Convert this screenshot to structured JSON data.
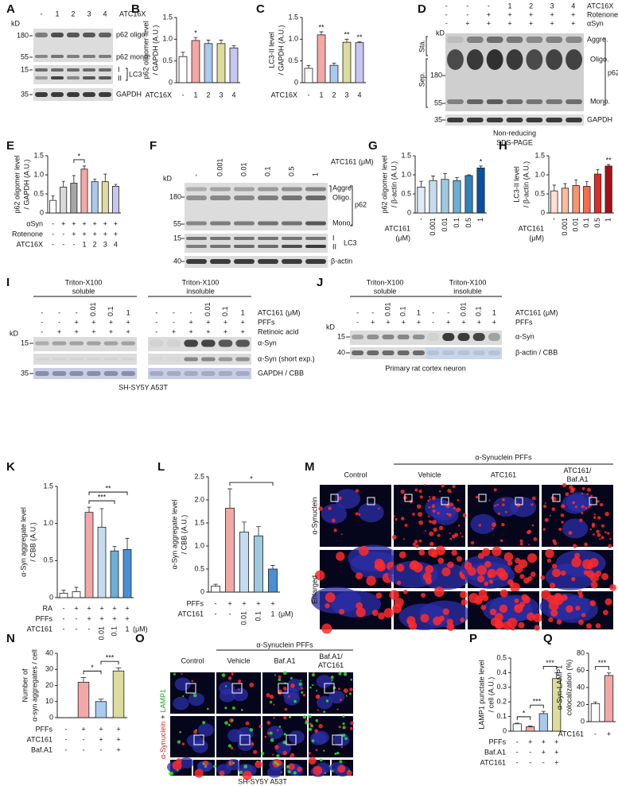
{
  "figure": {
    "A": {
      "letter": "A",
      "kd": "kD",
      "lanes": [
        "-",
        "1",
        "2",
        "3",
        "4"
      ],
      "treatment": "ATC16X",
      "markers": [
        180,
        55,
        15,
        35
      ],
      "labels": [
        "p62 oligo.",
        "p62 mono.",
        "I",
        "II",
        "LC3",
        "GAPDH"
      ]
    },
    "D": {
      "letter": "D",
      "rows": [
        {
          "label": "ATC16X",
          "lanes": [
            "-",
            "-",
            "-",
            "1",
            "2",
            "3",
            "4"
          ]
        },
        {
          "label": "Rotenone",
          "lanes": [
            "-",
            "-",
            "+",
            "+",
            "+",
            "+",
            "+"
          ]
        },
        {
          "label": "αSyn",
          "lanes": [
            "-",
            "+",
            "+",
            "+",
            "+",
            "+",
            "+"
          ]
        }
      ],
      "kd": "kD",
      "stack": [
        "Sta.",
        "Sep."
      ],
      "markers": [
        180,
        55,
        35
      ],
      "labels": [
        "Aggre.",
        "Oligo.",
        "Mono.",
        "p62",
        "GAPDH"
      ],
      "caption": [
        "Non-reducing",
        "SDS-PAGE"
      ]
    },
    "F": {
      "letter": "F",
      "lanes": [
        "-",
        "0.001",
        "0.01",
        "0.1",
        "0.5",
        "1"
      ],
      "treatment": "ATC161 (μM)",
      "kd": "kD",
      "markers": [
        180,
        55,
        15,
        40
      ],
      "labels": [
        "Aggre.",
        "Oligo.",
        "Mono.",
        "p62",
        "I",
        "II",
        "LC3",
        "β-actin"
      ]
    },
    "I": {
      "letter": "I",
      "fractions": [
        [
          "Triton-X100",
          "soluble"
        ],
        [
          "Triton-X100",
          "insoluble"
        ]
      ],
      "rows": [
        {
          "label": "ATC161 (μM)",
          "lanes": [
            "-",
            "-",
            "-",
            "0.01",
            "0.1",
            "1"
          ]
        },
        {
          "label": "PFFs",
          "lanes": [
            "-",
            "-",
            "+",
            "+",
            "+",
            "+"
          ]
        },
        {
          "label": "Retinoic acid",
          "lanes": [
            "-",
            "+",
            "+",
            "+",
            "+",
            "+"
          ]
        }
      ],
      "kd": "kD",
      "markers": [
        15,
        35
      ],
      "labels": [
        "α-Syn",
        "α-Syn (short exp.)",
        "GAPDH / CBB"
      ],
      "caption": "SH-SY5Y A53T"
    },
    "J": {
      "letter": "J",
      "fractions": [
        [
          "Triton-X100",
          "soluble"
        ],
        [
          "Triton-X100",
          "insoluble"
        ]
      ],
      "rows": [
        {
          "label": "ATC161 (μM)",
          "lanes": [
            "-",
            "-",
            "0.01",
            "0.1",
            "1"
          ]
        },
        {
          "label": "PFFs",
          "lanes": [
            "-",
            "+",
            "+",
            "+",
            "+"
          ]
        }
      ],
      "kd": "kD",
      "markers": [
        15,
        40
      ],
      "labels": [
        "α-Syn",
        "β-actin / CBB"
      ],
      "caption": "Primary rat cortex neuron"
    },
    "M": {
      "letter": "M",
      "group": "α-Synuclein PFFs",
      "columns": [
        [
          "Control"
        ],
        [
          "Vehicle"
        ],
        [
          "ATC161"
        ],
        [
          "ATC161/",
          "Baf.A1"
        ]
      ],
      "stain": "α-Synuclein",
      "row_label": "Enlarged"
    },
    "O": {
      "letter": "O",
      "group": "α-Synuclein PFFs",
      "columns": [
        [
          "Control"
        ],
        [
          "Vehicle"
        ],
        [
          "Baf.A1"
        ],
        [
          "Baf.A1/",
          "ATC161"
        ]
      ],
      "stain": [
        "α-Synuclein",
        "+",
        "LAMP1"
      ],
      "caption": "SH-SY5Y A53T"
    }
  },
  "chart_data": [
    {
      "letter": "B",
      "type": "bar",
      "ylabel": [
        "p62 oligomer level",
        "/ GAPDH (A.U.)"
      ],
      "xlabel": "ATC16X",
      "categories": [
        "-",
        "1",
        "2",
        "3",
        "4"
      ],
      "values": [
        0.6,
        0.97,
        0.9,
        0.9,
        0.8
      ],
      "errors": [
        0.1,
        0.07,
        0.08,
        0.08,
        0.05
      ],
      "colors": [
        "#ffffff",
        "#f4a7a7",
        "#a9c9ee",
        "#dcdc9c",
        "#c7c7f2"
      ],
      "ylim": [
        0,
        1.5
      ],
      "yticks": [
        0,
        0.5,
        {
          "value": 1,
          "label": "1.0"
        },
        1.5
      ],
      "significance": [
        {
          "label": "*",
          "bars": [
            1
          ]
        }
      ]
    },
    {
      "letter": "C",
      "type": "bar",
      "ylabel": [
        "LC3-II level",
        "/ GAPDH (A.U.)"
      ],
      "xlabel": "ATC16X",
      "categories": [
        "-",
        "1",
        "2",
        "3",
        "4"
      ],
      "values": [
        0.33,
        1.1,
        0.4,
        0.93,
        0.92
      ],
      "errors": [
        0.06,
        0.07,
        0.05,
        0.07,
        0.02
      ],
      "colors": [
        "#ffffff",
        "#f4a7a7",
        "#a9c9ee",
        "#dcdc9c",
        "#c7c7f2"
      ],
      "ylim": [
        0,
        1.5
      ],
      "yticks": [
        0,
        0.5,
        {
          "value": 1,
          "label": "1.0"
        },
        1.5
      ],
      "significance": [
        {
          "label": "**",
          "bars": [
            1
          ]
        },
        {
          "label": "**",
          "bars": [
            3
          ]
        },
        {
          "label": "**",
          "bars": [
            4
          ]
        }
      ]
    },
    {
      "letter": "E",
      "type": "bar",
      "ylabel": [
        "p62 oligomer level",
        "/ GAPDH (A.U.)"
      ],
      "values": [
        0.33,
        0.68,
        0.78,
        1.15,
        0.82,
        0.82,
        0.7
      ],
      "errors": [
        0.12,
        0.15,
        0.2,
        0.08,
        0.07,
        0.2,
        0.05
      ],
      "colors": [
        "#ffffff",
        "#d9d9d9",
        "#a6a6a6",
        "#f4a7a7",
        "#a9c9ee",
        "#dcdc9c",
        "#c7c7f2"
      ],
      "ylim": [
        0,
        1.5
      ],
      "yticks": [
        0,
        0.5,
        {
          "value": 1,
          "label": "1.0"
        },
        1.5
      ],
      "rows": [
        {
          "label": "αSyn",
          "values": [
            "-",
            "+",
            "+",
            "+",
            "+",
            "+",
            "+"
          ]
        },
        {
          "label": "Rotenone",
          "values": [
            "-",
            "-",
            "+",
            "+",
            "+",
            "+",
            "+"
          ]
        },
        {
          "label": "ATC16X",
          "values": [
            "-",
            "-",
            "-",
            "1",
            "2",
            "3",
            "4"
          ]
        }
      ],
      "significance": [
        {
          "label": "*",
          "bars": [
            2,
            3
          ]
        }
      ]
    },
    {
      "letter": "G",
      "type": "bar",
      "ylabel": [
        "p62 oligomer level",
        "/ β-actin (A.U.)"
      ],
      "xlabel": [
        "ATC161",
        "(μM)"
      ],
      "categories": [
        "-",
        "0.001",
        "0.01",
        "0.1",
        "0.5",
        "1"
      ],
      "values": [
        0.68,
        0.85,
        0.88,
        0.85,
        0.98,
        1.18
      ],
      "errors": [
        0.15,
        0.12,
        0.15,
        0.08,
        0.02,
        0.05
      ],
      "colors": [
        "#deebf7",
        "#c6dbef",
        "#9ecae1",
        "#6baed6",
        "#3182bd",
        "#08519c"
      ],
      "ylim": [
        0,
        1.5
      ],
      "yticks": [
        0,
        0.5,
        {
          "value": 1,
          "label": "1.0"
        },
        1.5
      ],
      "significance": [
        {
          "label": "*",
          "bars": [
            5
          ]
        }
      ]
    },
    {
      "letter": "H",
      "type": "bar",
      "ylabel": [
        "LC3-II level",
        "/ β-actin (A.U.)"
      ],
      "xlabel": [
        "ATC161",
        "(μM)"
      ],
      "categories": [
        "-",
        "0.001",
        "0.01",
        "0.1",
        "0.5",
        "1"
      ],
      "values": [
        0.58,
        0.65,
        0.72,
        0.7,
        1.02,
        1.23
      ],
      "errors": [
        0.15,
        0.12,
        0.15,
        0.12,
        0.12,
        0.04
      ],
      "colors": [
        "#fee0d2",
        "#fcbba1",
        "#fc9272",
        "#fb6a4a",
        "#de2d26",
        "#a50f15"
      ],
      "ylim": [
        0,
        1.5
      ],
      "yticks": [
        0,
        0.5,
        {
          "value": 1,
          "label": "1.0"
        },
        1.5
      ],
      "significance": [
        {
          "label": "**",
          "bars": [
            5
          ]
        }
      ]
    },
    {
      "letter": "K",
      "type": "bar",
      "ylabel": [
        "α-Syn aggregate level",
        "/ CBB (A.U.)"
      ],
      "values": [
        0.06,
        0.08,
        1.15,
        0.95,
        0.63,
        0.65
      ],
      "errors": [
        0.04,
        0.06,
        0.07,
        0.25,
        0.06,
        0.15
      ],
      "colors": [
        "#ffffff",
        "#ffffff",
        "#f4a7a7",
        "#c6dbef",
        "#6baed6",
        "#4a8fd4"
      ],
      "ylim": [
        0,
        1.5
      ],
      "yticks": [
        0,
        0.5,
        {
          "value": 1,
          "label": "1.0"
        },
        1.5
      ],
      "rows": [
        {
          "label": "RA",
          "values": [
            "-",
            "+",
            "+",
            "+",
            "+",
            "+"
          ]
        },
        {
          "label": "PFFs",
          "values": [
            "-",
            "-",
            "+",
            "+",
            "+",
            "+"
          ]
        },
        {
          "label": "ATC161",
          "values": [
            "-",
            "-",
            "-",
            "0.01",
            "0.1",
            "1"
          ],
          "unit": "(μM)"
        }
      ],
      "significance": [
        {
          "label": "***",
          "bars": [
            2,
            4
          ]
        },
        {
          "label": "**",
          "bars": [
            2,
            5
          ]
        }
      ]
    },
    {
      "letter": "L",
      "type": "bar",
      "ylabel": [
        "α-Syn aggregate level",
        "/ CBB (A.U.)"
      ],
      "values": [
        0.13,
        1.82,
        1.3,
        1.22,
        0.5
      ],
      "errors": [
        0.04,
        0.42,
        0.22,
        0.2,
        0.08
      ],
      "colors": [
        "#ffffff",
        "#f4a7a7",
        "#c6dbef",
        "#9ecae1",
        "#4a8fd4"
      ],
      "ylim": [
        0,
        2.5
      ],
      "yticks": [
        0,
        0.5,
        {
          "value": 1,
          "label": "1.0"
        },
        1.5,
        {
          "value": 2,
          "label": "2.0"
        },
        2.5
      ],
      "rows": [
        {
          "label": "PFFs",
          "values": [
            "-",
            "+",
            "+",
            "+",
            "+"
          ]
        },
        {
          "label": "ATC161",
          "values": [
            "-",
            "-",
            "0.01",
            "0.1",
            "1"
          ],
          "unit": "(μM)"
        }
      ],
      "significance": [
        {
          "label": "*",
          "bars": [
            1,
            4
          ]
        }
      ]
    },
    {
      "letter": "N",
      "type": "bar",
      "ylabel": [
        "Number of",
        "α-syn aggregates / cell"
      ],
      "values": [
        0,
        22,
        10,
        29
      ],
      "errors": [
        0,
        3,
        1.5,
        2
      ],
      "colors": [
        "#ffffff",
        "#f4a7a7",
        "#a9c9ee",
        "#dcdc9c"
      ],
      "ylim": [
        0,
        40
      ],
      "yticks": [
        0,
        10,
        20,
        30,
        40
      ],
      "rows": [
        {
          "label": "PFFs",
          "values": [
            "-",
            "+",
            "+",
            "+"
          ]
        },
        {
          "label": "ATC161",
          "values": [
            "-",
            "-",
            "+",
            "+"
          ]
        },
        {
          "label": "Baf.A1",
          "values": [
            "-",
            "-",
            "-",
            "+"
          ]
        }
      ],
      "significance": [
        {
          "label": "*",
          "bars": [
            1,
            2
          ]
        },
        {
          "label": "***",
          "bars": [
            2,
            3
          ]
        }
      ]
    },
    {
      "letter": "P",
      "type": "bar",
      "ylabel": [
        "LAMP1 punctate level",
        "/ cell (A.U.)"
      ],
      "values": [
        0.05,
        0.03,
        0.12,
        0.36
      ],
      "errors": [
        0.005,
        0.005,
        0.015,
        0.04
      ],
      "colors": [
        "#ffffff",
        "#f4a7a7",
        "#a9c9ee",
        "#dcdc9c"
      ],
      "ylim": [
        0,
        0.5
      ],
      "yticks": [
        0,
        0.1,
        0.2,
        0.3,
        0.4,
        0.5
      ],
      "rows": [
        {
          "label": "PFFs",
          "values": [
            "-",
            "+",
            "+",
            "+"
          ]
        },
        {
          "label": "Baf.A1",
          "values": [
            "-",
            "-",
            "+",
            "+"
          ]
        },
        {
          "label": "ATC161",
          "values": [
            "-",
            "-",
            "-",
            "+"
          ]
        }
      ],
      "significance": [
        {
          "label": "*",
          "bars": [
            0,
            1
          ]
        },
        {
          "label": "***",
          "bars": [
            1,
            2
          ]
        },
        {
          "label": "***",
          "bars": [
            2,
            3
          ]
        }
      ]
    },
    {
      "letter": "Q",
      "type": "bar",
      "ylabel": [
        "α-Syn-LAMP1",
        "colocalization (%)"
      ],
      "values": [
        21,
        54
      ],
      "errors": [
        2,
        3
      ],
      "colors": [
        "#ffffff",
        "#f4a7a7"
      ],
      "ylim": [
        0,
        80
      ],
      "yticks": [
        0,
        20,
        40,
        60,
        80
      ],
      "rows": [
        {
          "label": "ATC161",
          "values": [
            "-",
            "+"
          ]
        }
      ],
      "significance": [
        {
          "label": "***",
          "bars": [
            0,
            1
          ]
        }
      ]
    }
  ]
}
